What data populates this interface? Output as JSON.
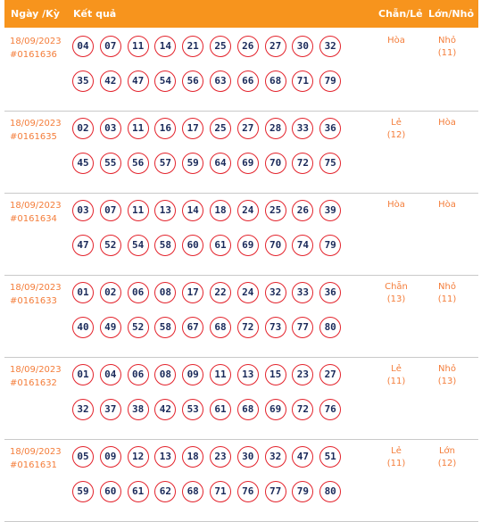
{
  "header": {
    "date_col": "Ngày /Kỳ",
    "result_col": "Kết quả",
    "chanle_col": "Chẵn/Lẻ",
    "lonnho_col": "Lớn/Nhỏ"
  },
  "rows": [
    {
      "date": "18/09/2023",
      "draw_id": "#0161636",
      "numbers": [
        "04",
        "07",
        "11",
        "14",
        "21",
        "25",
        "26",
        "27",
        "30",
        "32",
        "35",
        "42",
        "47",
        "54",
        "56",
        "63",
        "66",
        "68",
        "71",
        "79"
      ],
      "chanle": {
        "label": "Hòa",
        "count": ""
      },
      "lonnho": {
        "label": "Nhỏ",
        "count": "(11)"
      }
    },
    {
      "date": "18/09/2023",
      "draw_id": "#0161635",
      "numbers": [
        "02",
        "03",
        "11",
        "16",
        "17",
        "25",
        "27",
        "28",
        "33",
        "36",
        "45",
        "55",
        "56",
        "57",
        "59",
        "64",
        "69",
        "70",
        "72",
        "75"
      ],
      "chanle": {
        "label": "Lẻ",
        "count": "(12)"
      },
      "lonnho": {
        "label": "Hòa",
        "count": ""
      }
    },
    {
      "date": "18/09/2023",
      "draw_id": "#0161634",
      "numbers": [
        "03",
        "07",
        "11",
        "13",
        "14",
        "18",
        "24",
        "25",
        "26",
        "39",
        "47",
        "52",
        "54",
        "58",
        "60",
        "61",
        "69",
        "70",
        "74",
        "79"
      ],
      "chanle": {
        "label": "Hòa",
        "count": ""
      },
      "lonnho": {
        "label": "Hòa",
        "count": ""
      }
    },
    {
      "date": "18/09/2023",
      "draw_id": "#0161633",
      "numbers": [
        "01",
        "02",
        "06",
        "08",
        "17",
        "22",
        "24",
        "32",
        "33",
        "36",
        "40",
        "49",
        "52",
        "58",
        "67",
        "68",
        "72",
        "73",
        "77",
        "80"
      ],
      "chanle": {
        "label": "Chẵn",
        "count": "(13)"
      },
      "lonnho": {
        "label": "Nhỏ",
        "count": "(11)"
      }
    },
    {
      "date": "18/09/2023",
      "draw_id": "#0161632",
      "numbers": [
        "01",
        "04",
        "06",
        "08",
        "09",
        "11",
        "13",
        "15",
        "23",
        "27",
        "32",
        "37",
        "38",
        "42",
        "53",
        "61",
        "68",
        "69",
        "72",
        "76"
      ],
      "chanle": {
        "label": "Lẻ",
        "count": "(11)"
      },
      "lonnho": {
        "label": "Nhỏ",
        "count": "(13)"
      }
    },
    {
      "date": "18/09/2023",
      "draw_id": "#0161631",
      "numbers": [
        "05",
        "09",
        "12",
        "13",
        "18",
        "23",
        "30",
        "32",
        "47",
        "51",
        "59",
        "60",
        "61",
        "62",
        "68",
        "71",
        "76",
        "77",
        "79",
        "80"
      ],
      "chanle": {
        "label": "Lẻ",
        "count": "(11)"
      },
      "lonnho": {
        "label": "Lớn",
        "count": "(12)"
      }
    }
  ]
}
